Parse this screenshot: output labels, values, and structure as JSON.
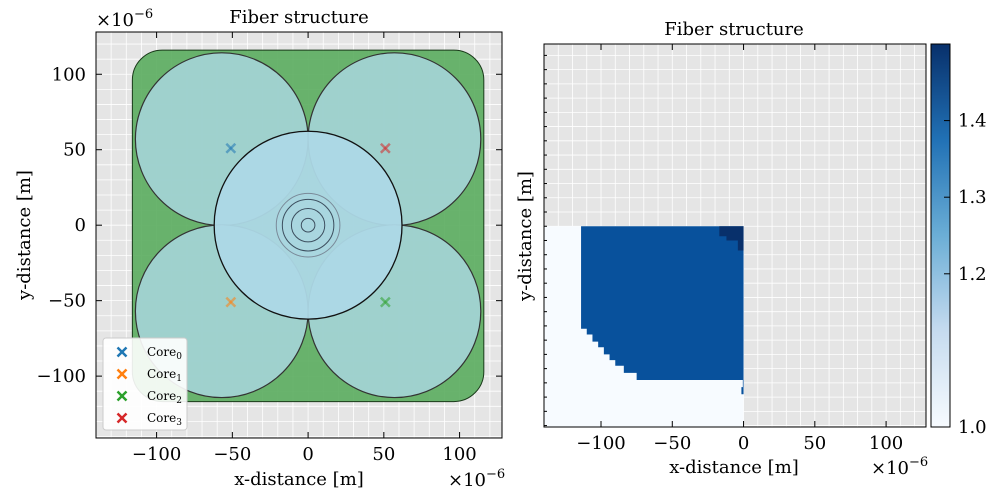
{
  "chart_data": [
    {
      "type": "scatter",
      "title": "Fiber structure",
      "xlabel": "x-distance [m]",
      "ylabel": "y-distance [m]",
      "x_scale_text": "×10",
      "x_scale_exp": "−6",
      "y_scale_text": "×10",
      "y_scale_exp": "−6",
      "xlim": [
        -140,
        128
      ],
      "ylim": [
        -141,
        128
      ],
      "xticks": [
        -100,
        -50,
        0,
        50,
        100
      ],
      "xtick_labels": [
        "−100",
        "−50",
        "0",
        "50",
        "100"
      ],
      "yticks": [
        -100,
        -50,
        0,
        50,
        100
      ],
      "ytick_labels": [
        "−100",
        "−50",
        "0",
        "50",
        "100"
      ],
      "grid": true,
      "legend_position": "lower-left",
      "structure": {
        "cladding_half_width": 116,
        "large_circles": [
          {
            "cx": -57,
            "cy": 57,
            "r": 57
          },
          {
            "cx": 57,
            "cy": 57,
            "r": 57
          },
          {
            "cx": -57,
            "cy": -57,
            "r": 57
          },
          {
            "cx": 57,
            "cy": -57,
            "r": 57
          }
        ],
        "center_circle_r": 62,
        "inner_rings": [
          21,
          17,
          11,
          4.5
        ]
      },
      "series": [
        {
          "name": "Core",
          "subscript": "0",
          "x": [
            -51
          ],
          "y": [
            51
          ],
          "color": "#1f77b4"
        },
        {
          "name": "Core",
          "subscript": "1",
          "x": [
            -51
          ],
          "y": [
            -51
          ],
          "color": "#ff7f0e"
        },
        {
          "name": "Core",
          "subscript": "2",
          "x": [
            51
          ],
          "y": [
            -51
          ],
          "color": "#2ca02c"
        },
        {
          "name": "Core",
          "subscript": "3",
          "x": [
            51
          ],
          "y": [
            51
          ],
          "color": "#d62728"
        }
      ],
      "colors": {
        "cladding": "#5aac5e",
        "circles": "#add8e6",
        "overlap": "#b9bccb",
        "background": "#e5e5e5"
      }
    },
    {
      "type": "heatmap",
      "title": "Fiber structure",
      "xlabel": "x-distance [m]",
      "ylabel": "y-distance [m]",
      "x_scale_text": "×10",
      "x_scale_exp": "−6",
      "xlim": [
        -140,
        128
      ],
      "ylim": [
        -141,
        128
      ],
      "xticks": [
        -100,
        -50,
        0,
        50,
        100
      ],
      "xtick_labels": [
        "−100",
        "−50",
        "0",
        "50",
        "100"
      ],
      "colorbar": {
        "ticks": [
          1.0,
          1.2,
          1.3,
          1.4
        ],
        "tick_labels": [
          "1.0",
          "1.2",
          "1.3",
          "1.4"
        ],
        "range": [
          1.0,
          1.5
        ]
      },
      "regions": {
        "filled_quadrant": "lower-left",
        "low_index": 1.0,
        "high_index": 1.44,
        "core_index": 1.45
      }
    }
  ]
}
